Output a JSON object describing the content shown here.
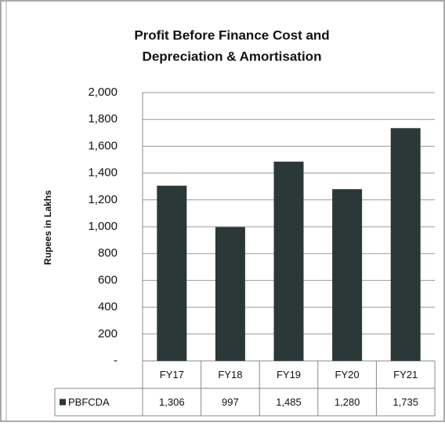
{
  "chart_data": {
    "type": "bar",
    "title": [
      "Profit Before Finance Cost and",
      "Depreciation & Amortisation"
    ],
    "y_label": "Rupees in Lakhs",
    "categories": [
      "FY17",
      "FY18",
      "FY19",
      "FY20",
      "FY21"
    ],
    "series": [
      {
        "name": "PBFCDA",
        "color": "#2b3838",
        "values": [
          1306,
          997,
          1485,
          1280,
          1735
        ],
        "value_labels": [
          "1,306",
          "997",
          "1,485",
          "1,280",
          "1,735"
        ]
      }
    ],
    "ylim": [
      0,
      2000
    ],
    "yticks": [
      {
        "value": 0,
        "label": "-"
      },
      200,
      400,
      600,
      800,
      {
        "value": 1000,
        "label": "1,000"
      },
      {
        "value": 1200,
        "label": "1,200"
      },
      {
        "value": 1400,
        "label": "1,400"
      },
      {
        "value": 1600,
        "label": "1,600"
      },
      {
        "value": 1800,
        "label": "1,800"
      },
      {
        "value": 2000,
        "label": "2,000"
      }
    ],
    "grid": true
  }
}
